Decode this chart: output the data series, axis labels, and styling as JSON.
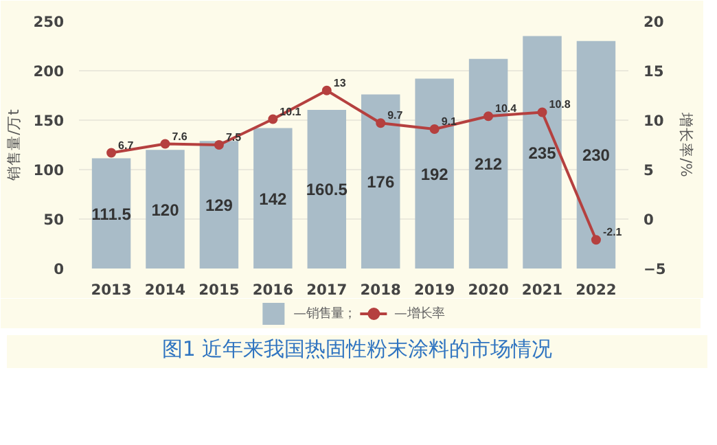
{
  "chart_data": {
    "type": "bar",
    "title": "图1 近年来我国热固性粉末涂料的市场情况",
    "ylabel": "销售量/万t",
    "y2label": "增长率/%",
    "categories": [
      "2013",
      "2014",
      "2015",
      "2016",
      "2017",
      "2018",
      "2019",
      "2020",
      "2021",
      "2022"
    ],
    "series": [
      {
        "name": "—销售量；",
        "type": "bar",
        "color": "#a9bcc8",
        "values": [
          111.5,
          120,
          129,
          142,
          160.5,
          176,
          192,
          212,
          235,
          230
        ]
      },
      {
        "name": "—增长率",
        "type": "line",
        "axis": "y2",
        "color": "#b5403f",
        "marker": "circle",
        "values": [
          6.7,
          7.6,
          7.5,
          10.1,
          13,
          9.7,
          9.1,
          10.4,
          10.8,
          -2.1
        ]
      }
    ],
    "ylim": [
      0,
      250
    ],
    "yticks": [
      0,
      50,
      100,
      150,
      200,
      250
    ],
    "y2lim": [
      -5,
      20
    ],
    "y2ticks": [
      -5,
      0,
      5,
      10,
      15,
      20
    ],
    "data_labels": true,
    "grid": "y",
    "legend": "bottom"
  }
}
